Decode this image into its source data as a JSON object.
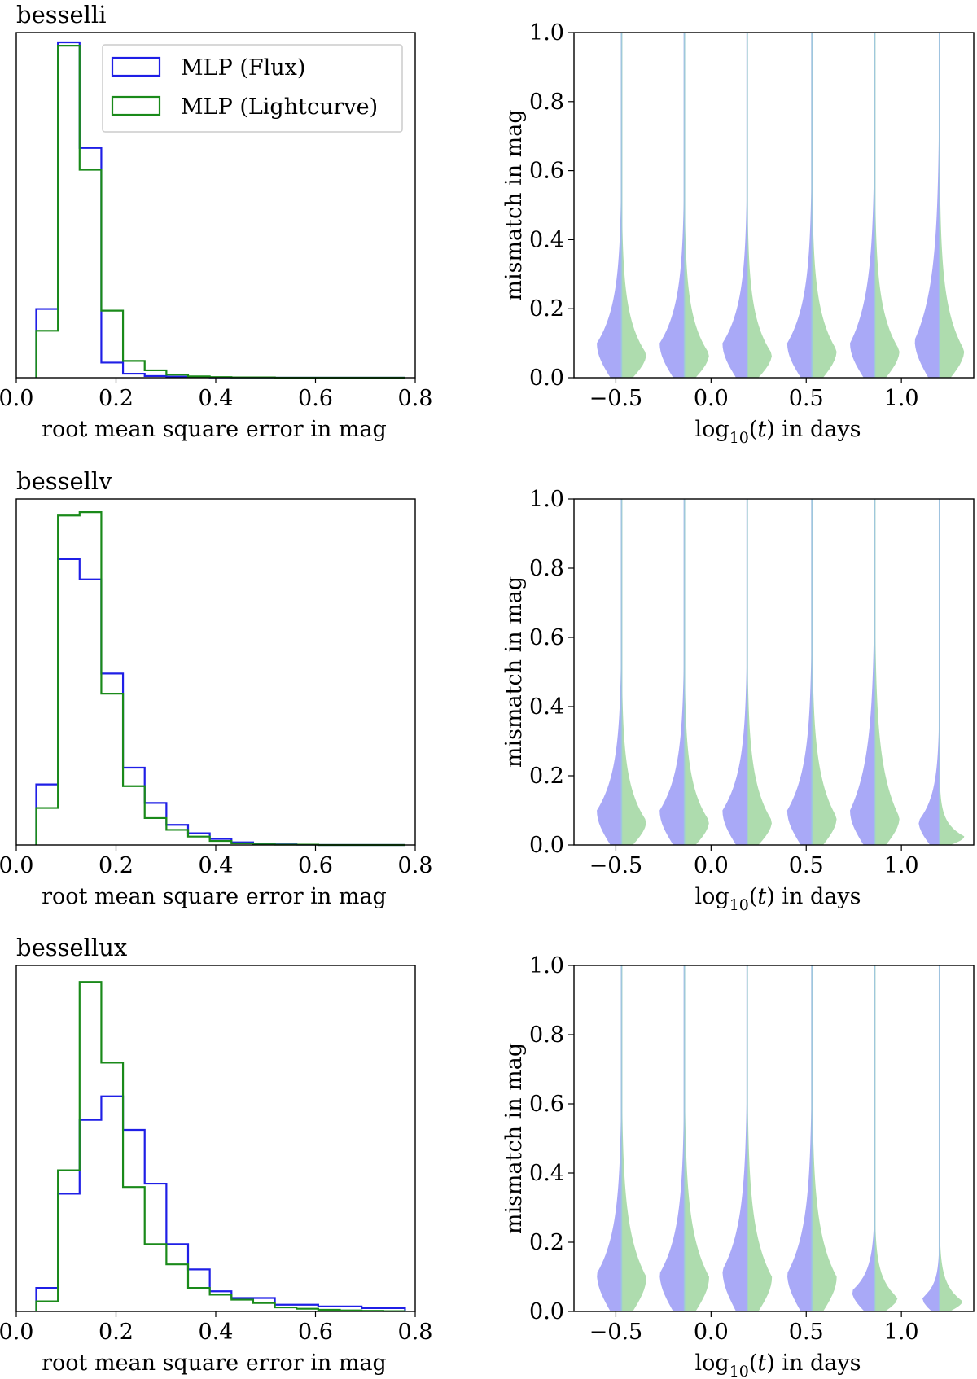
{
  "colors": {
    "flux": "#1f1fe6",
    "lightcurve": "#1a8a1a",
    "violin_flux": "#a9a9f7",
    "violin_lightcurve": "#aedcae",
    "violin_line": "#9ec7dc"
  },
  "legend": {
    "entries": [
      "MLP (Flux)",
      "MLP (Lightcurve)"
    ],
    "location": "upper-right of first histogram"
  },
  "chart_data": [
    {
      "type": "histogram",
      "panel_title": "besselli",
      "xlabel": "root mean square error in mag",
      "xlim": [
        0,
        0.8
      ],
      "xticks": [
        "0.0",
        "0.2",
        "0.4",
        "0.6",
        "0.8"
      ],
      "yticks_shown": false,
      "bin_edges": [
        0.04,
        0.0835,
        0.127,
        0.1705,
        0.214,
        0.2575,
        0.301,
        0.3445,
        0.388,
        0.4315,
        0.475,
        0.5185,
        0.562,
        0.6055,
        0.649,
        0.6925,
        0.736,
        0.7795
      ],
      "series": [
        {
          "name": "MLP (Flux)",
          "values": [
            0.205,
            1.0,
            0.685,
            0.045,
            0.012,
            0.005,
            0.003,
            0.002,
            0.001,
            0.001,
            0.001,
            0.0,
            0.0,
            0.0,
            0.0,
            0.0,
            0.0
          ]
        },
        {
          "name": "MLP (Lightcurve)",
          "values": [
            0.14,
            0.99,
            0.62,
            0.2,
            0.05,
            0.022,
            0.009,
            0.004,
            0.002,
            0.001,
            0.001,
            0.0,
            0.0,
            0.0,
            0.0,
            0.0,
            0.0
          ]
        }
      ]
    },
    {
      "type": "violin",
      "ylabel": "mismatch in mag",
      "xlabel": "log10(t) in days",
      "ylim": [
        0,
        1.0
      ],
      "yticks": [
        "0.0",
        "0.2",
        "0.4",
        "0.6",
        "0.8",
        "1.0"
      ],
      "xlim": [
        -0.72,
        1.38
      ],
      "xticks": [
        "−0.5",
        "0.0",
        "0.5",
        "1.0"
      ],
      "positions": [
        -0.47,
        -0.14,
        0.19,
        0.53,
        0.86,
        1.2
      ],
      "series": [
        {
          "name": "MLP (Flux)",
          "peak": [
            0.1,
            0.1,
            0.1,
            0.1,
            0.1,
            0.11
          ],
          "width": [
            0.13,
            0.13,
            0.13,
            0.13,
            0.13,
            0.13
          ],
          "spread": [
            0.12,
            0.12,
            0.12,
            0.13,
            0.15,
            0.17
          ],
          "tail_top": [
            1.0,
            1.0,
            1.0,
            1.0,
            1.0,
            1.0
          ]
        },
        {
          "name": "MLP (Lightcurve)",
          "peak": [
            0.07,
            0.07,
            0.07,
            0.08,
            0.08,
            0.08
          ],
          "width": [
            0.13,
            0.13,
            0.13,
            0.13,
            0.13,
            0.13
          ],
          "spread": [
            0.11,
            0.11,
            0.11,
            0.12,
            0.12,
            0.13
          ],
          "tail_top": [
            1.0,
            1.0,
            1.0,
            1.0,
            1.0,
            1.0
          ]
        }
      ]
    },
    {
      "type": "histogram",
      "panel_title": "bessellv",
      "xlabel": "root mean square error in mag",
      "xlim": [
        0,
        0.8
      ],
      "xticks": [
        "0.0",
        "0.2",
        "0.4",
        "0.6",
        "0.8"
      ],
      "yticks_shown": false,
      "bin_edges": [
        0.04,
        0.0835,
        0.127,
        0.1705,
        0.214,
        0.2575,
        0.301,
        0.3445,
        0.388,
        0.4315,
        0.475,
        0.5185,
        0.562,
        0.6055,
        0.649,
        0.6925,
        0.736,
        0.7795
      ],
      "series": [
        {
          "name": "MLP (Flux)",
          "values": [
            0.18,
            0.85,
            0.79,
            0.51,
            0.23,
            0.125,
            0.06,
            0.035,
            0.018,
            0.008,
            0.004,
            0.002,
            0.001,
            0.0,
            0.0,
            0.0,
            0.0
          ]
        },
        {
          "name": "MLP (Lightcurve)",
          "values": [
            0.11,
            0.98,
            0.99,
            0.45,
            0.175,
            0.08,
            0.045,
            0.025,
            0.012,
            0.005,
            0.002,
            0.001,
            0.001,
            0.0,
            0.0,
            0.0,
            0.0
          ]
        }
      ]
    },
    {
      "type": "violin",
      "ylabel": "mismatch in mag",
      "xlabel": "log10(t) in days",
      "ylim": [
        0,
        1.0
      ],
      "yticks": [
        "0.0",
        "0.2",
        "0.4",
        "0.6",
        "0.8",
        "1.0"
      ],
      "xlim": [
        -0.72,
        1.38
      ],
      "xticks": [
        "−0.5",
        "0.0",
        "0.5",
        "1.0"
      ],
      "positions": [
        -0.47,
        -0.14,
        0.19,
        0.53,
        0.86,
        1.2
      ],
      "series": [
        {
          "name": "MLP (Flux)",
          "peak": [
            0.1,
            0.1,
            0.1,
            0.1,
            0.1,
            0.07
          ],
          "width": [
            0.13,
            0.13,
            0.13,
            0.13,
            0.13,
            0.11
          ],
          "spread": [
            0.12,
            0.12,
            0.12,
            0.13,
            0.16,
            0.08
          ],
          "tail_top": [
            1.0,
            1.0,
            1.0,
            1.0,
            1.0,
            1.0
          ]
        },
        {
          "name": "MLP (Lightcurve)",
          "peak": [
            0.07,
            0.07,
            0.07,
            0.08,
            0.08,
            0.025
          ],
          "width": [
            0.13,
            0.13,
            0.13,
            0.13,
            0.13,
            0.13
          ],
          "spread": [
            0.11,
            0.11,
            0.12,
            0.13,
            0.15,
            0.04
          ],
          "tail_top": [
            1.0,
            1.0,
            1.0,
            1.0,
            1.0,
            0.25
          ]
        }
      ]
    },
    {
      "type": "histogram",
      "panel_title": "bessellux",
      "xlabel": "root mean square error in mag",
      "xlim": [
        0,
        0.8
      ],
      "xticks": [
        "0.0",
        "0.2",
        "0.4",
        "0.6",
        "0.8"
      ],
      "yticks_shown": false,
      "bin_edges": [
        0.04,
        0.0835,
        0.127,
        0.1705,
        0.214,
        0.2575,
        0.301,
        0.3445,
        0.388,
        0.4315,
        0.475,
        0.5185,
        0.562,
        0.6055,
        0.649,
        0.6925,
        0.736,
        0.7795
      ],
      "series": [
        {
          "name": "MLP (Flux)",
          "values": [
            0.07,
            0.35,
            0.57,
            0.64,
            0.54,
            0.38,
            0.2,
            0.125,
            0.06,
            0.04,
            0.04,
            0.02,
            0.02,
            0.015,
            0.015,
            0.01,
            0.01
          ]
        },
        {
          "name": "MLP (Lightcurve)",
          "values": [
            0.03,
            0.42,
            0.98,
            0.74,
            0.37,
            0.2,
            0.14,
            0.07,
            0.05,
            0.035,
            0.025,
            0.012,
            0.008,
            0.005,
            0.003,
            0.002,
            0.001
          ]
        }
      ]
    },
    {
      "type": "violin",
      "ylabel": "mismatch in mag",
      "xlabel": "log10(t) in days",
      "ylim": [
        0,
        1.0
      ],
      "yticks": [
        "0.0",
        "0.2",
        "0.4",
        "0.6",
        "0.8",
        "1.0"
      ],
      "xlim": [
        -0.72,
        1.38
      ],
      "xticks": [
        "−0.5",
        "0.0",
        "0.5",
        "1.0"
      ],
      "positions": [
        -0.47,
        -0.14,
        0.19,
        0.53,
        0.86,
        1.2
      ],
      "series": [
        {
          "name": "MLP (Flux)",
          "peak": [
            0.11,
            0.11,
            0.12,
            0.11,
            0.06,
            0.04
          ],
          "width": [
            0.13,
            0.13,
            0.13,
            0.13,
            0.12,
            0.09
          ],
          "spread": [
            0.13,
            0.13,
            0.14,
            0.14,
            0.06,
            0.04
          ],
          "tail_top": [
            1.0,
            1.0,
            1.0,
            1.0,
            1.0,
            1.0
          ]
        },
        {
          "name": "MLP (Lightcurve)",
          "peak": [
            0.1,
            0.1,
            0.1,
            0.1,
            0.04,
            0.03
          ],
          "width": [
            0.13,
            0.13,
            0.13,
            0.13,
            0.12,
            0.12
          ],
          "spread": [
            0.14,
            0.14,
            0.14,
            0.14,
            0.06,
            0.05
          ],
          "tail_top": [
            1.0,
            1.0,
            1.0,
            1.0,
            1.0,
            0.35
          ]
        }
      ]
    }
  ]
}
